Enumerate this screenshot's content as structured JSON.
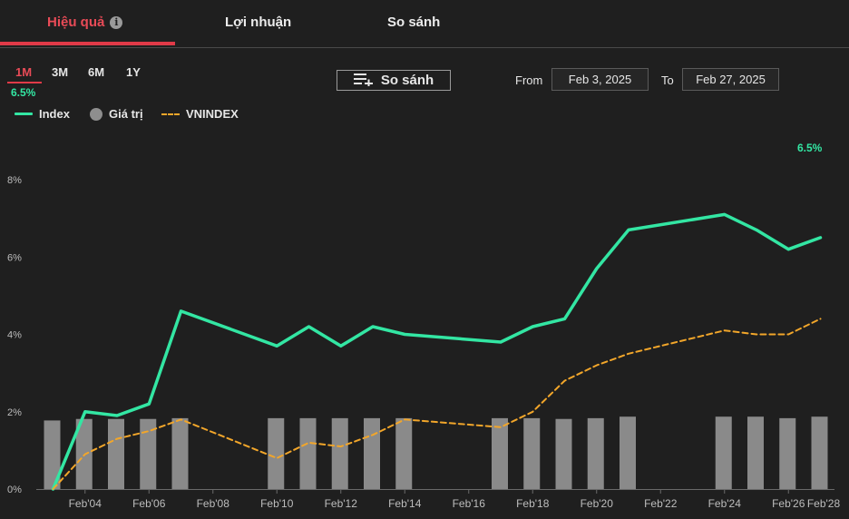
{
  "tabs": [
    {
      "label": "Hiệu quả",
      "active": true
    },
    {
      "label": "Lợi nhuận",
      "active": false
    },
    {
      "label": "So sánh",
      "active": false
    }
  ],
  "ranges": [
    {
      "label": "1M",
      "active": true
    },
    {
      "label": "3M",
      "active": false
    },
    {
      "label": "6M",
      "active": false
    },
    {
      "label": "1Y",
      "active": false
    }
  ],
  "range_value": "6.5%",
  "compare_button": "So sánh",
  "date_filter": {
    "from_label": "From",
    "from_value": "Feb 3, 2025",
    "to_label": "To",
    "to_value": "Feb 27, 2025"
  },
  "legend": {
    "index": "Index",
    "value": "Giá trị",
    "vnindex": "VNINDEX"
  },
  "end_value_label": "6.5%",
  "colors": {
    "accent": "#e03a48",
    "index_line": "#33e6a3",
    "vnindex_line": "#f2a62a",
    "bars": "#8a8a8a"
  },
  "chart_data": {
    "type": "line",
    "y_ticks": [
      "0%",
      "2%",
      "4%",
      "6%",
      "8%"
    ],
    "ylim": [
      0,
      8
    ],
    "x_ticks": [
      {
        "label": "Feb'04",
        "day": 4
      },
      {
        "label": "Feb'06",
        "day": 6
      },
      {
        "label": "Feb'08",
        "day": 8
      },
      {
        "label": "Feb'10",
        "day": 10
      },
      {
        "label": "Feb'12",
        "day": 12
      },
      {
        "label": "Feb'14",
        "day": 14
      },
      {
        "label": "Feb'16",
        "day": 16
      },
      {
        "label": "Feb'18",
        "day": 18
      },
      {
        "label": "Feb'20",
        "day": 20
      },
      {
        "label": "Feb'22",
        "day": 22
      },
      {
        "label": "Feb'24",
        "day": 24
      },
      {
        "label": "Feb'26",
        "day": 26
      },
      {
        "label": "Feb'28",
        "day": 28
      }
    ],
    "xlim": [
      3,
      28
    ],
    "grid": false,
    "series": [
      {
        "name": "Index",
        "style": "solid",
        "x": [
          3,
          4,
          5,
          6,
          7,
          10,
          11,
          12,
          13,
          14,
          17,
          18,
          19,
          20,
          21,
          24,
          25,
          26,
          27
        ],
        "y": [
          0.0,
          2.0,
          1.9,
          2.2,
          4.6,
          3.7,
          4.2,
          3.7,
          4.2,
          4.0,
          3.8,
          4.2,
          4.4,
          5.7,
          6.7,
          7.1,
          6.7,
          6.2,
          6.5
        ]
      },
      {
        "name": "VNINDEX",
        "style": "dashed",
        "x": [
          3,
          4,
          5,
          6,
          7,
          10,
          11,
          12,
          13,
          14,
          17,
          18,
          19,
          20,
          21,
          24,
          25,
          26,
          27
        ],
        "y": [
          0.0,
          0.9,
          1.3,
          1.5,
          1.8,
          0.8,
          1.2,
          1.1,
          1.4,
          1.8,
          1.6,
          2.0,
          2.8,
          3.2,
          3.5,
          4.1,
          4.0,
          4.0,
          4.4
        ]
      }
    ],
    "bars": {
      "name": "Giá trị",
      "x": [
        3,
        4,
        5,
        6,
        7,
        10,
        11,
        12,
        13,
        14,
        17,
        18,
        19,
        20,
        21,
        24,
        25,
        26,
        27
      ],
      "relative_height": [
        0.9,
        0.92,
        0.92,
        0.92,
        0.93,
        0.93,
        0.93,
        0.93,
        0.93,
        0.93,
        0.93,
        0.93,
        0.92,
        0.93,
        0.95,
        0.95,
        0.95,
        0.93,
        0.95
      ]
    }
  }
}
